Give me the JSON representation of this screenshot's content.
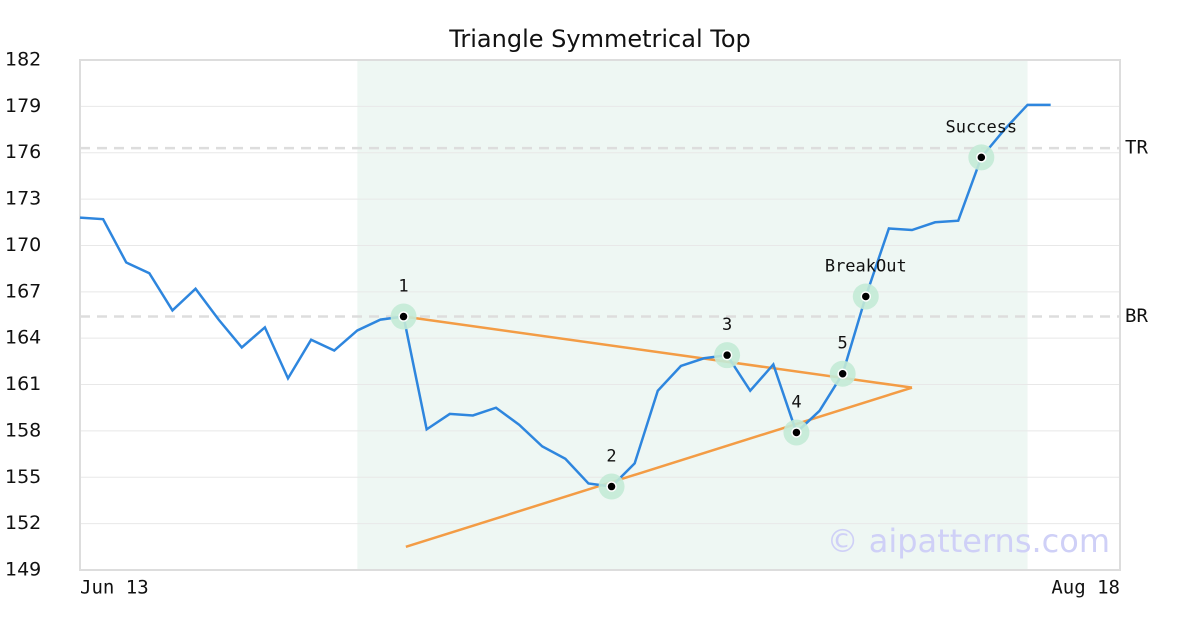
{
  "chart_data": {
    "type": "line",
    "title": "Triangle Symmetrical Top",
    "x": [
      0,
      1,
      2,
      3,
      4,
      5,
      6,
      7,
      8,
      9,
      10,
      11,
      12,
      13,
      14,
      15,
      16,
      17,
      18,
      19,
      20,
      21,
      22,
      23,
      24,
      25,
      26,
      27,
      28,
      29,
      30,
      31,
      32,
      33,
      34,
      35,
      36,
      37,
      38,
      39,
      40,
      41,
      42
    ],
    "values": [
      171.8,
      171.7,
      168.9,
      168.2,
      165.8,
      167.2,
      165.2,
      163.4,
      164.7,
      161.4,
      163.9,
      163.2,
      164.5,
      165.2,
      165.4,
      158.1,
      159.1,
      159.0,
      159.5,
      158.4,
      157.0,
      156.2,
      154.6,
      154.4,
      155.9,
      160.6,
      162.2,
      162.7,
      162.9,
      160.6,
      162.3,
      157.9,
      159.3,
      161.7,
      166.7,
      171.1,
      171.0,
      171.5,
      171.6,
      175.7,
      177.5,
      179.1,
      179.1
    ],
    "color": "#2e86de",
    "xlim": [
      0,
      45
    ],
    "xticks": [
      {
        "value": 0,
        "label": "Jun 13"
      },
      {
        "value": 45,
        "label": "Aug 18"
      }
    ],
    "ylim": [
      149,
      182
    ],
    "yticks": [
      149,
      152,
      155,
      158,
      161,
      164,
      167,
      170,
      173,
      176,
      179,
      182
    ],
    "grid": true,
    "highlight_range": [
      12,
      41
    ],
    "levels": [
      {
        "label": "TR",
        "value": 176.3
      },
      {
        "label": "BR",
        "value": 165.4
      }
    ],
    "trendlines": [
      {
        "x": [
          14,
          36
        ],
        "values": [
          165.4,
          160.8
        ],
        "color": "#f39c45"
      },
      {
        "x": [
          14.1,
          36
        ],
        "values": [
          150.5,
          160.8
        ],
        "color": "#f39c45"
      }
    ],
    "points": [
      {
        "label": "1",
        "x": 14,
        "value": 165.4
      },
      {
        "label": "2",
        "x": 23,
        "value": 154.4
      },
      {
        "label": "3",
        "x": 28,
        "value": 162.9
      },
      {
        "label": "4",
        "x": 31,
        "value": 157.9
      },
      {
        "label": "5",
        "x": 33,
        "value": 161.7
      },
      {
        "label": "BreakOut",
        "x": 34,
        "value": 166.7
      },
      {
        "label": "Success",
        "x": 39,
        "value": 175.7
      }
    ],
    "watermark": "© aipatterns.com"
  }
}
